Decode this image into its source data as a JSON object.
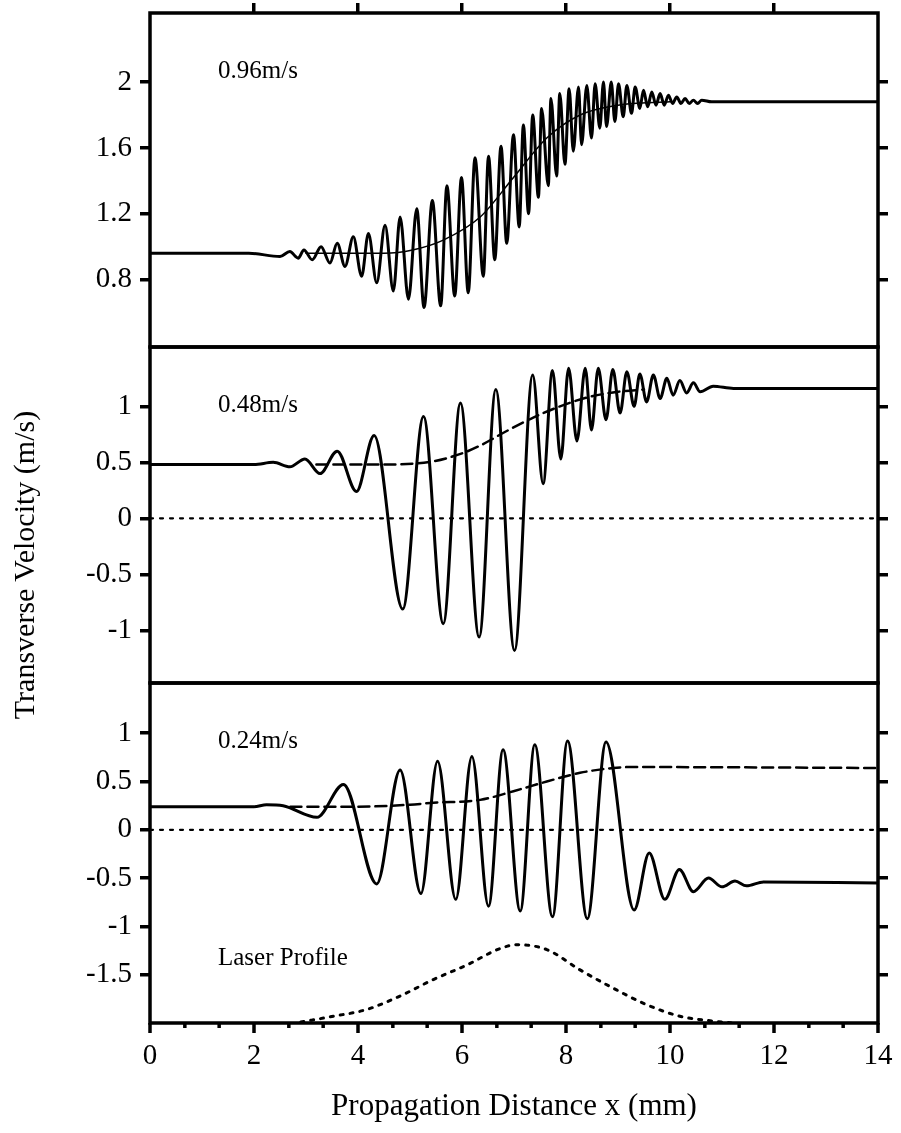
{
  "chart_data": [
    {
      "type": "line",
      "tick_labels": "y",
      "marker": "none",
      "xlim": [
        0,
        14
      ],
      "ylim": [
        0.39,
        2.42
      ],
      "yticks": [
        0.8,
        1.2,
        1.6,
        2
      ],
      "annotations": [
        "0.96m/s"
      ],
      "series": [
        {
          "color": "#000000",
          "line_style": "solid",
          "x": [
            0,
            1.9,
            2.5,
            2.69,
            2.85,
            2.96,
            3.12,
            3.29,
            3.46,
            3.6,
            3.75,
            3.91,
            4.07,
            4.2,
            4.36,
            4.52,
            4.68,
            4.81,
            4.97,
            5.13,
            5.27,
            5.43,
            5.59,
            5.71,
            5.86,
            5.99,
            6.12,
            6.25,
            6.41,
            6.51,
            6.63,
            6.75,
            6.86,
            6.99,
            7.1,
            7.18,
            7.28,
            7.36,
            7.47,
            7.53,
            7.66,
            7.71,
            7.82,
            7.88,
            7.98,
            8.06,
            8.14,
            8.24,
            8.3,
            8.4,
            8.49,
            8.56,
            8.65,
            8.72,
            8.78,
            8.87,
            8.94,
            9.01,
            9.1,
            9.17,
            9.26,
            9.33,
            9.42,
            9.49,
            9.57,
            9.65,
            9.73,
            9.81,
            9.89,
            9.97,
            10.05,
            10.13,
            10.21,
            10.29,
            10.37,
            10.45,
            10.53,
            10.61,
            10.8,
            14
          ],
          "values": [
            0.96,
            0.96,
            0.94,
            0.97,
            0.93,
            0.98,
            0.92,
            1.0,
            0.9,
            1.02,
            0.88,
            1.06,
            0.82,
            1.08,
            0.78,
            1.13,
            0.73,
            1.18,
            0.68,
            1.23,
            0.63,
            1.28,
            0.64,
            1.37,
            0.7,
            1.42,
            0.72,
            1.54,
            0.82,
            1.55,
            0.92,
            1.61,
            1.02,
            1.68,
            1.12,
            1.74,
            1.2,
            1.8,
            1.3,
            1.84,
            1.37,
            1.9,
            1.43,
            1.93,
            1.5,
            1.96,
            1.58,
            1.97,
            1.62,
            1.98,
            1.66,
            1.99,
            1.72,
            2.0,
            1.73,
            2.0,
            1.76,
            1.99,
            1.79,
            1.98,
            1.81,
            1.97,
            1.84,
            1.95,
            1.85,
            1.94,
            1.86,
            1.93,
            1.86,
            1.92,
            1.87,
            1.91,
            1.87,
            1.9,
            1.87,
            1.89,
            1.87,
            1.89,
            1.88,
            1.88
          ]
        },
        {
          "color": "#000000",
          "line_style": "solid",
          "x": [
            3,
            4.5,
            5.05,
            5.64,
            6.35,
            6.99,
            7.63,
            8.27,
            9,
            10
          ],
          "values": [
            0.96,
            0.96,
            0.98,
            1.04,
            1.18,
            1.42,
            1.66,
            1.8,
            1.86,
            1.88
          ]
        }
      ]
    },
    {
      "type": "line",
      "tick_labels": "y",
      "marker": "none",
      "xlim": [
        0,
        14
      ],
      "ylim": [
        -1.47,
        1.53
      ],
      "yticks": [
        -1,
        -0.5,
        0,
        0.5,
        1
      ],
      "ylabel": "Transverse Velocity (m/s)",
      "annotations": [
        "0.48m/s"
      ],
      "ref_lines": [
        {
          "axis": "y",
          "value": 0,
          "line_style": "dotted"
        }
      ],
      "series": [
        {
          "color": "#000000",
          "line_style": "solid",
          "x": [
            0,
            2.0,
            2.37,
            2.69,
            2.98,
            3.27,
            3.6,
            3.97,
            4.31,
            4.86,
            5.26,
            5.64,
            5.97,
            6.33,
            6.65,
            7.01,
            7.36,
            7.56,
            7.74,
            7.9,
            8.05,
            8.21,
            8.37,
            8.49,
            8.62,
            8.77,
            8.9,
            9.04,
            9.17,
            9.31,
            9.42,
            9.55,
            9.68,
            9.81,
            9.94,
            10.06,
            10.19,
            10.32,
            10.45,
            10.58,
            10.83,
            11.22,
            14
          ],
          "values": [
            0.48,
            0.48,
            0.5,
            0.46,
            0.53,
            0.4,
            0.6,
            0.24,
            0.74,
            -0.81,
            0.91,
            -0.94,
            1.03,
            -1.06,
            1.15,
            -1.18,
            1.28,
            0.31,
            1.32,
            0.53,
            1.34,
            0.69,
            1.34,
            0.79,
            1.34,
            0.88,
            1.33,
            0.94,
            1.31,
            1.0,
            1.29,
            1.04,
            1.28,
            1.07,
            1.25,
            1.1,
            1.23,
            1.12,
            1.21,
            1.13,
            1.18,
            1.16,
            1.16
          ]
        },
        {
          "color": "#000000",
          "line_style": "dashed",
          "x": [
            3.2,
            4.5,
            5.45,
            6.0,
            6.35,
            6.86,
            7.37,
            8.0,
            8.5,
            9.0,
            9.5
          ],
          "values": [
            0.48,
            0.48,
            0.51,
            0.58,
            0.65,
            0.78,
            0.9,
            1.02,
            1.09,
            1.13,
            1.15
          ]
        }
      ]
    },
    {
      "type": "line",
      "marker": "none",
      "xlim": [
        0,
        14
      ],
      "xticks": [
        0,
        {
          "value": 0.67,
          "label": null
        },
        {
          "value": 1.33,
          "label": null
        },
        2,
        {
          "value": 2.67,
          "label": null
        },
        {
          "value": 3.33,
          "label": null
        },
        4,
        {
          "value": 4.67,
          "label": null
        },
        {
          "value": 5.33,
          "label": null
        },
        6,
        {
          "value": 6.67,
          "label": null
        },
        {
          "value": 7.33,
          "label": null
        },
        8,
        {
          "value": 8.67,
          "label": null
        },
        {
          "value": 9.33,
          "label": null
        },
        10,
        {
          "value": 10.67,
          "label": null
        },
        {
          "value": 11.33,
          "label": null
        },
        12,
        {
          "value": 12.67,
          "label": null
        },
        {
          "value": 13.33,
          "label": null
        },
        14
      ],
      "ylim": [
        -2.0,
        1.52
      ],
      "yticks": [
        -1.5,
        -1,
        -0.5,
        0,
        0.5,
        1
      ],
      "xlabel": "Propagation Distance x (mm)",
      "annotations": [
        "0.24m/s",
        "Laser Profile"
      ],
      "ref_lines": [
        {
          "axis": "y",
          "value": 0,
          "line_style": "dotted"
        }
      ],
      "series": [
        {
          "color": "#000000",
          "line_style": "solid",
          "x": [
            0,
            2.0,
            2.24,
            2.56,
            3.21,
            3.72,
            4.36,
            4.81,
            5.21,
            5.53,
            5.88,
            6.19,
            6.51,
            6.79,
            7.12,
            7.4,
            7.74,
            8.03,
            8.41,
            8.77,
            9.31,
            9.6,
            9.9,
            10.18,
            10.45,
            10.74,
            11.0,
            11.25,
            11.47,
            11.8,
            14
          ],
          "values": [
            0.24,
            0.24,
            0.26,
            0.25,
            0.13,
            0.47,
            -0.56,
            0.62,
            -0.66,
            0.71,
            -0.72,
            0.76,
            -0.79,
            0.83,
            -0.84,
            0.88,
            -0.9,
            0.92,
            -0.92,
            0.91,
            -0.83,
            -0.24,
            -0.72,
            -0.41,
            -0.64,
            -0.5,
            -0.59,
            -0.53,
            -0.58,
            -0.54,
            -0.55
          ]
        },
        {
          "color": "#000000",
          "line_style": "dashed",
          "x": [
            2.7,
            4.0,
            5.0,
            5.45,
            6.35,
            6.99,
            7.63,
            8.27,
            8.91,
            9.23,
            14
          ],
          "values": [
            0.24,
            0.24,
            0.26,
            0.28,
            0.31,
            0.4,
            0.5,
            0.59,
            0.64,
            0.65,
            0.64
          ]
        },
        {
          "color": "#000000",
          "line_style": "dotted",
          "x": [
            2.9,
            3.53,
            4.17,
            4.81,
            5.45,
            6.09,
            6.73,
            7.05,
            7.63,
            8.27,
            8.91,
            9.55,
            10.19,
            10.83,
            11.2
          ],
          "values": [
            -1.99,
            -1.93,
            -1.86,
            -1.72,
            -1.55,
            -1.4,
            -1.23,
            -1.19,
            -1.24,
            -1.45,
            -1.64,
            -1.81,
            -1.93,
            -1.98,
            -2.0
          ]
        }
      ]
    }
  ]
}
